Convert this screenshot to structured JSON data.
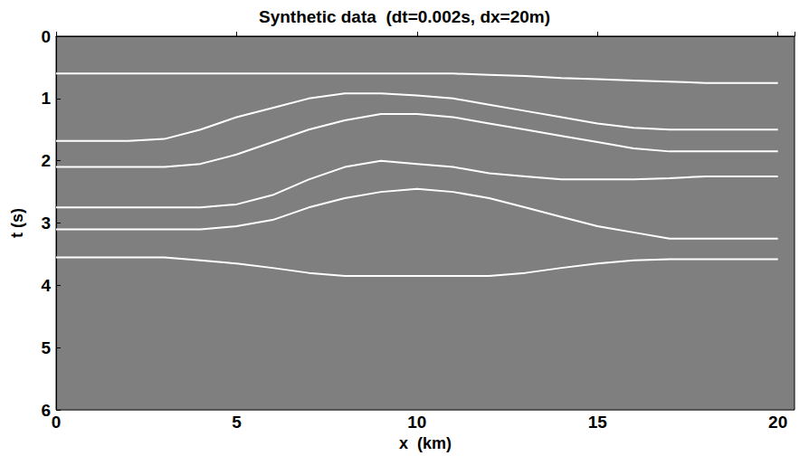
{
  "chart_data": {
    "type": "line",
    "title": "Synthetic data  (dt=0.002s, dx=20m)",
    "x_label": "x  (km)",
    "y_label": "t (s)",
    "x": [
      0,
      1,
      2,
      3,
      4,
      5,
      6,
      7,
      8,
      9,
      10,
      11,
      12,
      13,
      14,
      15,
      16,
      17,
      18,
      19,
      20
    ],
    "series": [
      {
        "color": "#ffffff",
        "values": [
          0.6,
          0.6,
          0.6,
          0.6,
          0.6,
          0.6,
          0.6,
          0.6,
          0.6,
          0.6,
          0.6,
          0.6,
          0.62,
          0.64,
          0.67,
          0.69,
          0.71,
          0.73,
          0.75,
          0.75,
          0.75
        ]
      },
      {
        "color": "#ffffff",
        "values": [
          1.68,
          1.68,
          1.68,
          1.65,
          1.5,
          1.3,
          1.15,
          1.0,
          0.92,
          0.92,
          0.95,
          1.0,
          1.1,
          1.2,
          1.3,
          1.4,
          1.47,
          1.5,
          1.5,
          1.5,
          1.5
        ]
      },
      {
        "color": "#ffffff",
        "values": [
          2.1,
          2.1,
          2.1,
          2.1,
          2.05,
          1.9,
          1.7,
          1.5,
          1.35,
          1.25,
          1.25,
          1.3,
          1.4,
          1.5,
          1.6,
          1.7,
          1.8,
          1.85,
          1.85,
          1.85,
          1.85
        ]
      },
      {
        "color": "#ffffff",
        "values": [
          2.75,
          2.75,
          2.75,
          2.75,
          2.75,
          2.7,
          2.55,
          2.3,
          2.1,
          2.0,
          2.05,
          2.1,
          2.2,
          2.25,
          2.3,
          2.3,
          2.3,
          2.28,
          2.25,
          2.25,
          2.25
        ]
      },
      {
        "color": "#ffffff",
        "values": [
          3.1,
          3.1,
          3.1,
          3.1,
          3.1,
          3.05,
          2.95,
          2.75,
          2.6,
          2.5,
          2.45,
          2.5,
          2.6,
          2.75,
          2.9,
          3.05,
          3.15,
          3.25,
          3.25,
          3.25,
          3.25
        ]
      },
      {
        "color": "#ffffff",
        "values": [
          3.55,
          3.55,
          3.55,
          3.55,
          3.6,
          3.65,
          3.72,
          3.8,
          3.85,
          3.85,
          3.85,
          3.85,
          3.85,
          3.8,
          3.72,
          3.65,
          3.6,
          3.58,
          3.58,
          3.58,
          3.58
        ]
      }
    ],
    "xlim": [
      0,
      20.46
    ],
    "xticks": [
      0,
      5,
      10,
      15,
      20
    ],
    "ylim": [
      0,
      6
    ],
    "yticks": [
      0,
      1,
      2,
      3,
      4,
      5,
      6
    ],
    "grid": false
  }
}
